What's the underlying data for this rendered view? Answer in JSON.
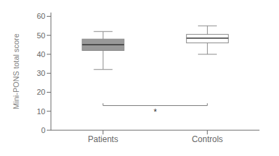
{
  "chart_data": {
    "type": "box",
    "categories": [
      "Patients",
      "Controls"
    ],
    "boxes": [
      {
        "median": 45,
        "q1": 42,
        "q3": 48,
        "whislo": 32,
        "whishi": 52
      },
      {
        "median": 48.5,
        "q1": 46,
        "q3": 50.5,
        "whislo": 40,
        "whishi": 55
      }
    ],
    "colors": [
      "#999999",
      "#ffffff"
    ],
    "ylabel": "Mini-PONS total score",
    "ylim": [
      0,
      62
    ],
    "yticks": [
      0,
      10,
      20,
      30,
      40,
      50,
      60
    ],
    "grid": false,
    "annotations": [
      {
        "text": "*",
        "from": "Patients",
        "to": "Controls",
        "y": 13
      }
    ]
  }
}
